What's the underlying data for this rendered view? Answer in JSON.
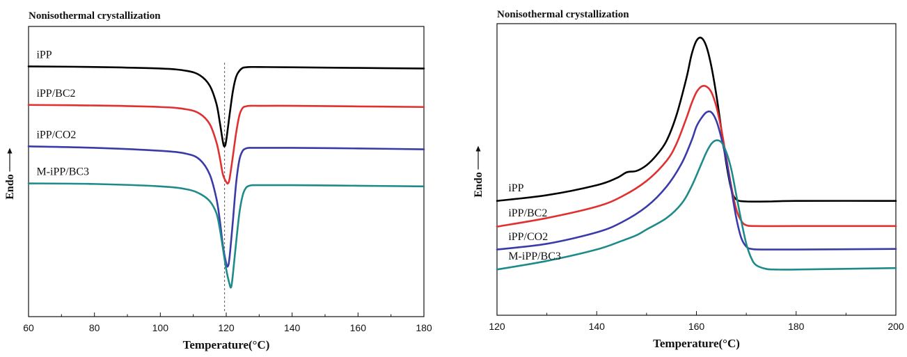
{
  "chart_data": [
    {
      "type": "line",
      "title": "Nonisothermal crystallization",
      "xlabel": "Temperature(°C)",
      "ylabel": "Endo",
      "xlim": [
        60,
        180
      ],
      "xticks": [
        60,
        80,
        100,
        120,
        140,
        160,
        180
      ],
      "y_tick_labels": false,
      "grid": false,
      "legend": "inline labels above curves",
      "reference_line": {
        "x": 119.5,
        "style": "dashed"
      },
      "series": [
        {
          "name": "iPP",
          "color": "#000000",
          "label_at": 62,
          "x": [
            60,
            80,
            100,
            108,
            112,
            115,
            117,
            118,
            119,
            119.5,
            120,
            121,
            122,
            123,
            124,
            125,
            126,
            127,
            130,
            140,
            160,
            180
          ],
          "y": [
            7.25,
            7.23,
            7.18,
            7.1,
            6.95,
            6.6,
            6.0,
            5.4,
            4.7,
            4.55,
            4.75,
            5.6,
            6.4,
            6.9,
            7.1,
            7.2,
            7.22,
            7.23,
            7.23,
            7.22,
            7.2,
            7.18
          ]
        },
        {
          "name": "iPP/BC2",
          "color": "#e03030",
          "label_at": 62,
          "x": [
            60,
            80,
            100,
            108,
            112,
            115,
            117,
            118,
            119,
            120,
            120.5,
            121,
            122,
            123,
            124,
            125,
            126,
            127,
            130,
            140,
            160,
            180
          ],
          "y": [
            5.95,
            5.93,
            5.88,
            5.8,
            5.65,
            5.3,
            4.7,
            4.2,
            3.6,
            3.35,
            3.3,
            3.45,
            4.2,
            5.0,
            5.6,
            5.85,
            5.9,
            5.92,
            5.92,
            5.92,
            5.9,
            5.88
          ]
        },
        {
          "name": "iPP/CO2",
          "color": "#3a3aa8",
          "label_at": 62,
          "x": [
            60,
            80,
            100,
            108,
            112,
            115,
            117,
            118,
            119,
            120,
            120.5,
            121,
            122,
            123,
            124,
            125,
            126,
            127,
            130,
            140,
            160,
            180
          ],
          "y": [
            4.55,
            4.5,
            4.4,
            4.3,
            4.1,
            3.6,
            2.8,
            2.1,
            1.2,
            0.6,
            0.5,
            0.8,
            2.0,
            3.3,
            4.1,
            4.4,
            4.48,
            4.5,
            4.5,
            4.5,
            4.48,
            4.45
          ]
        },
        {
          "name": "M-iPP/BC3",
          "color": "#1f8a8a",
          "label_at": 62,
          "x": [
            60,
            80,
            100,
            108,
            112,
            115,
            117,
            118,
            119,
            120,
            121,
            121.5,
            122,
            123,
            124,
            125,
            126,
            127,
            128,
            130,
            140,
            160,
            180
          ],
          "y": [
            3.3,
            3.28,
            3.2,
            3.1,
            2.95,
            2.7,
            2.3,
            1.8,
            1.1,
            0.4,
            -0.1,
            -0.2,
            0.2,
            1.3,
            2.3,
            2.9,
            3.15,
            3.22,
            3.24,
            3.24,
            3.24,
            3.22,
            3.2
          ]
        }
      ]
    },
    {
      "type": "line",
      "title": "Nonisothermal crystallization",
      "xlabel": "Temperature(°C)",
      "ylabel": "Endo",
      "xlim": [
        120,
        200
      ],
      "xticks": [
        120,
        140,
        160,
        180,
        200
      ],
      "y_tick_labels": false,
      "grid": false,
      "legend": "inline labels above curves",
      "series": [
        {
          "name": "iPP",
          "color": "#000000",
          "label_at": 122,
          "x": [
            120,
            130,
            140,
            144,
            146,
            148,
            150,
            152,
            154,
            156,
            158,
            159,
            160,
            161,
            162,
            163,
            164,
            165,
            166,
            167,
            168,
            170,
            175,
            180,
            200
          ],
          "y": [
            4.5,
            4.7,
            5.05,
            5.3,
            5.5,
            5.55,
            5.75,
            6.1,
            6.6,
            7.5,
            8.8,
            9.6,
            10.1,
            10.2,
            9.9,
            9.2,
            8.2,
            7.0,
            5.8,
            4.9,
            4.55,
            4.48,
            4.48,
            4.5,
            4.5
          ]
        },
        {
          "name": "iPP/BC2",
          "color": "#e03030",
          "label_at": 122,
          "x": [
            120,
            130,
            140,
            145,
            150,
            154,
            156,
            158,
            159,
            160,
            161,
            162,
            163,
            164,
            165,
            166,
            167,
            168,
            169,
            170,
            172,
            180,
            200
          ],
          "y": [
            3.6,
            3.9,
            4.3,
            4.65,
            5.2,
            5.9,
            6.5,
            7.4,
            7.9,
            8.3,
            8.5,
            8.5,
            8.3,
            7.8,
            7.0,
            6.0,
            5.0,
            4.2,
            3.8,
            3.65,
            3.62,
            3.62,
            3.62
          ]
        },
        {
          "name": "iPP/CO2",
          "color": "#3a3aa8",
          "label_at": 122,
          "x": [
            120,
            130,
            140,
            145,
            150,
            154,
            157,
            159,
            160,
            161,
            162,
            163,
            164,
            165,
            166,
            167,
            168,
            169,
            170,
            171,
            173,
            180,
            200
          ],
          "y": [
            2.8,
            3.0,
            3.4,
            3.75,
            4.3,
            5.0,
            5.8,
            6.6,
            7.1,
            7.4,
            7.6,
            7.6,
            7.3,
            6.7,
            5.9,
            4.9,
            3.9,
            3.2,
            2.9,
            2.82,
            2.8,
            2.8,
            2.82
          ]
        },
        {
          "name": "M-iPP/BC3",
          "color": "#1f8a8a",
          "label_at": 122,
          "x": [
            120,
            130,
            140,
            145,
            148,
            150,
            154,
            157,
            159,
            161,
            162,
            163,
            164,
            165,
            166,
            167,
            168,
            169,
            170,
            171,
            172,
            174,
            176,
            180,
            200
          ],
          "y": [
            2.1,
            2.4,
            2.8,
            3.1,
            3.3,
            3.5,
            3.9,
            4.4,
            5.0,
            5.8,
            6.2,
            6.5,
            6.62,
            6.55,
            6.2,
            5.6,
            4.7,
            3.8,
            3.0,
            2.5,
            2.25,
            2.12,
            2.1,
            2.1,
            2.15
          ]
        }
      ]
    }
  ]
}
